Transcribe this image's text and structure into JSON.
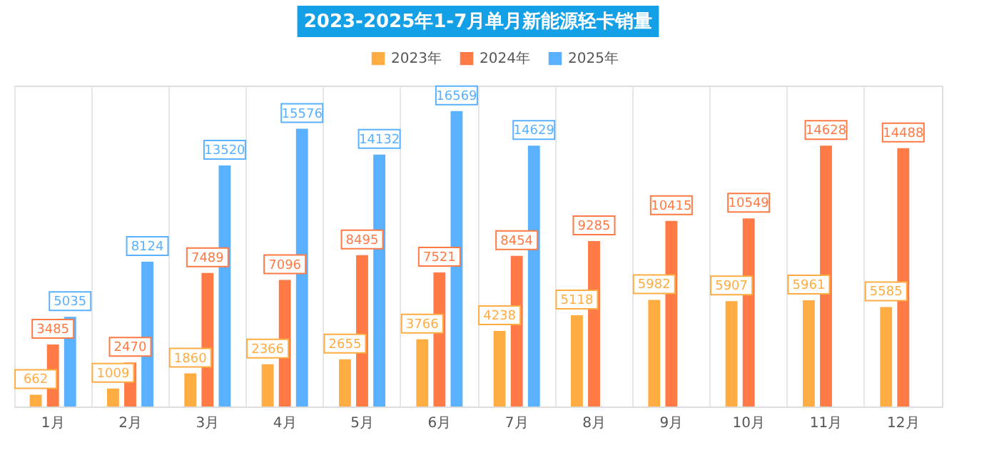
{
  "chart_data": {
    "type": "bar",
    "title": "2023-2025年1-7月单月新能源轻卡销量",
    "categories": [
      "1月",
      "2月",
      "3月",
      "4月",
      "5月",
      "6月",
      "7月",
      "8月",
      "9月",
      "10月",
      "11月",
      "12月"
    ],
    "series": [
      {
        "name": "2023年",
        "color": "#ffad42",
        "values": [
          662,
          1009,
          1860,
          2366,
          2655,
          3766,
          4238,
          5118,
          5982,
          5907,
          5961,
          5585
        ]
      },
      {
        "name": "2024年",
        "color": "#ff7a45",
        "values": [
          3485,
          2470,
          7489,
          7096,
          8495,
          7521,
          8454,
          9285,
          10415,
          10549,
          14628,
          14488
        ]
      },
      {
        "name": "2025年",
        "color": "#5ab1ff",
        "values": [
          5035,
          8124,
          13520,
          15576,
          14132,
          16569,
          14629,
          null,
          null,
          null,
          null,
          null
        ]
      }
    ],
    "ylim": [
      0,
      18000
    ],
    "data_labels": true,
    "tick_labels": "x",
    "grid": "x",
    "legend": "top"
  }
}
